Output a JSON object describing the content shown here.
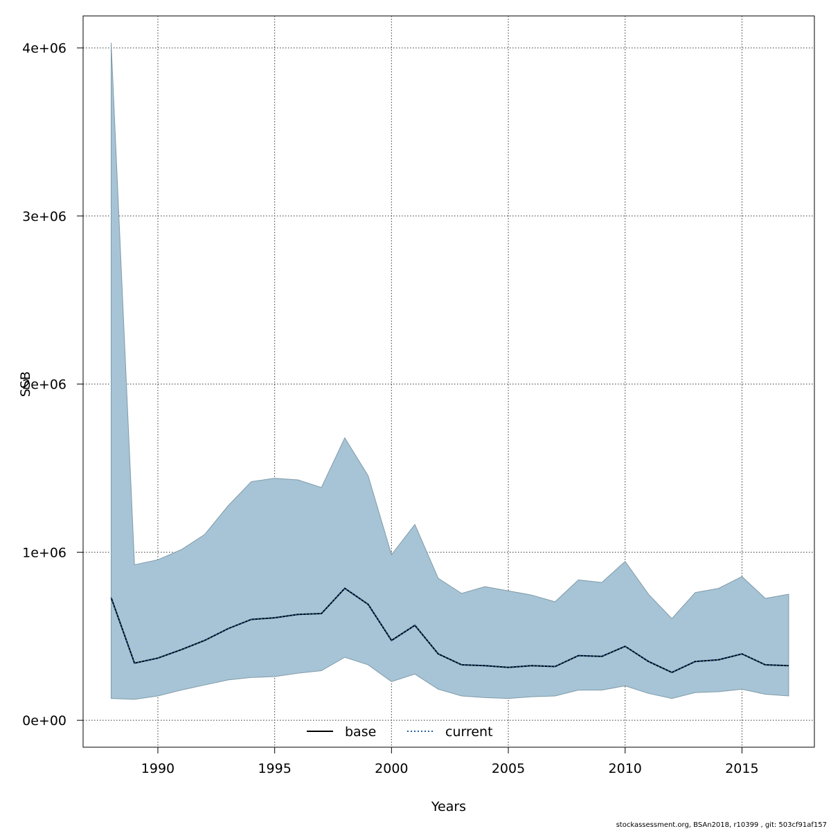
{
  "chart_data": {
    "type": "area",
    "title": "",
    "xlabel": "Years",
    "ylabel": "SSB",
    "xlim": [
      1986.8,
      2018.1
    ],
    "ylim": [
      -160000,
      4190000
    ],
    "x_ticks": [
      1990,
      1995,
      2000,
      2005,
      2010,
      2015
    ],
    "x_tick_labels": [
      "1990",
      "1995",
      "2000",
      "2005",
      "2010",
      "2015"
    ],
    "y_ticks": [
      0,
      1000000,
      2000000,
      3000000,
      4000000
    ],
    "y_tick_labels": [
      "0e+00",
      "1e+06",
      "2e+06",
      "3e+06",
      "4e+06"
    ],
    "grid": true,
    "legend": {
      "placement": "bottom-center",
      "entries": [
        "base",
        "current"
      ]
    },
    "band_color": "#a6c4d5",
    "band_edge_color": "#7f9aa8",
    "x": [
      1988,
      1989,
      1990,
      1991,
      1992,
      1993,
      1994,
      1995,
      1996,
      1997,
      1998,
      1999,
      2000,
      2001,
      2002,
      2003,
      2004,
      2005,
      2006,
      2007,
      2008,
      2009,
      2010,
      2011,
      2012,
      2013,
      2014,
      2015,
      2016,
      2017
    ],
    "band_upper": [
      4030000,
      925000,
      955000,
      1015000,
      1105000,
      1275000,
      1420000,
      1440000,
      1430000,
      1385000,
      1680000,
      1455000,
      985000,
      1165000,
      845000,
      755000,
      795000,
      770000,
      745000,
      705000,
      835000,
      820000,
      945000,
      750000,
      605000,
      760000,
      785000,
      855000,
      725000,
      750000
    ],
    "band_lower": [
      130000,
      125000,
      145000,
      180000,
      210000,
      240000,
      255000,
      260000,
      280000,
      295000,
      375000,
      330000,
      230000,
      275000,
      185000,
      145000,
      135000,
      130000,
      140000,
      145000,
      180000,
      180000,
      205000,
      160000,
      130000,
      165000,
      170000,
      185000,
      155000,
      145000
    ],
    "series": [
      {
        "name": "base",
        "color": "#000000",
        "style": "solid",
        "values": [
          730000,
          340000,
          370000,
          420000,
          475000,
          545000,
          600000,
          610000,
          630000,
          635000,
          785000,
          690000,
          475000,
          565000,
          395000,
          330000,
          325000,
          315000,
          325000,
          320000,
          385000,
          380000,
          440000,
          350000,
          285000,
          350000,
          360000,
          395000,
          330000,
          325000
        ]
      },
      {
        "name": "current",
        "color": "#1f5fa0",
        "style": "dotted",
        "values": [
          730000,
          340000,
          370000,
          420000,
          475000,
          545000,
          600000,
          610000,
          630000,
          635000,
          785000,
          690000,
          475000,
          565000,
          395000,
          330000,
          325000,
          315000,
          325000,
          320000,
          385000,
          380000,
          440000,
          350000,
          285000,
          350000,
          360000,
          395000,
          330000,
          325000
        ]
      }
    ]
  },
  "footer": "stockassessment.org, BSAn2018, r10399 , git: 503cf91af157"
}
